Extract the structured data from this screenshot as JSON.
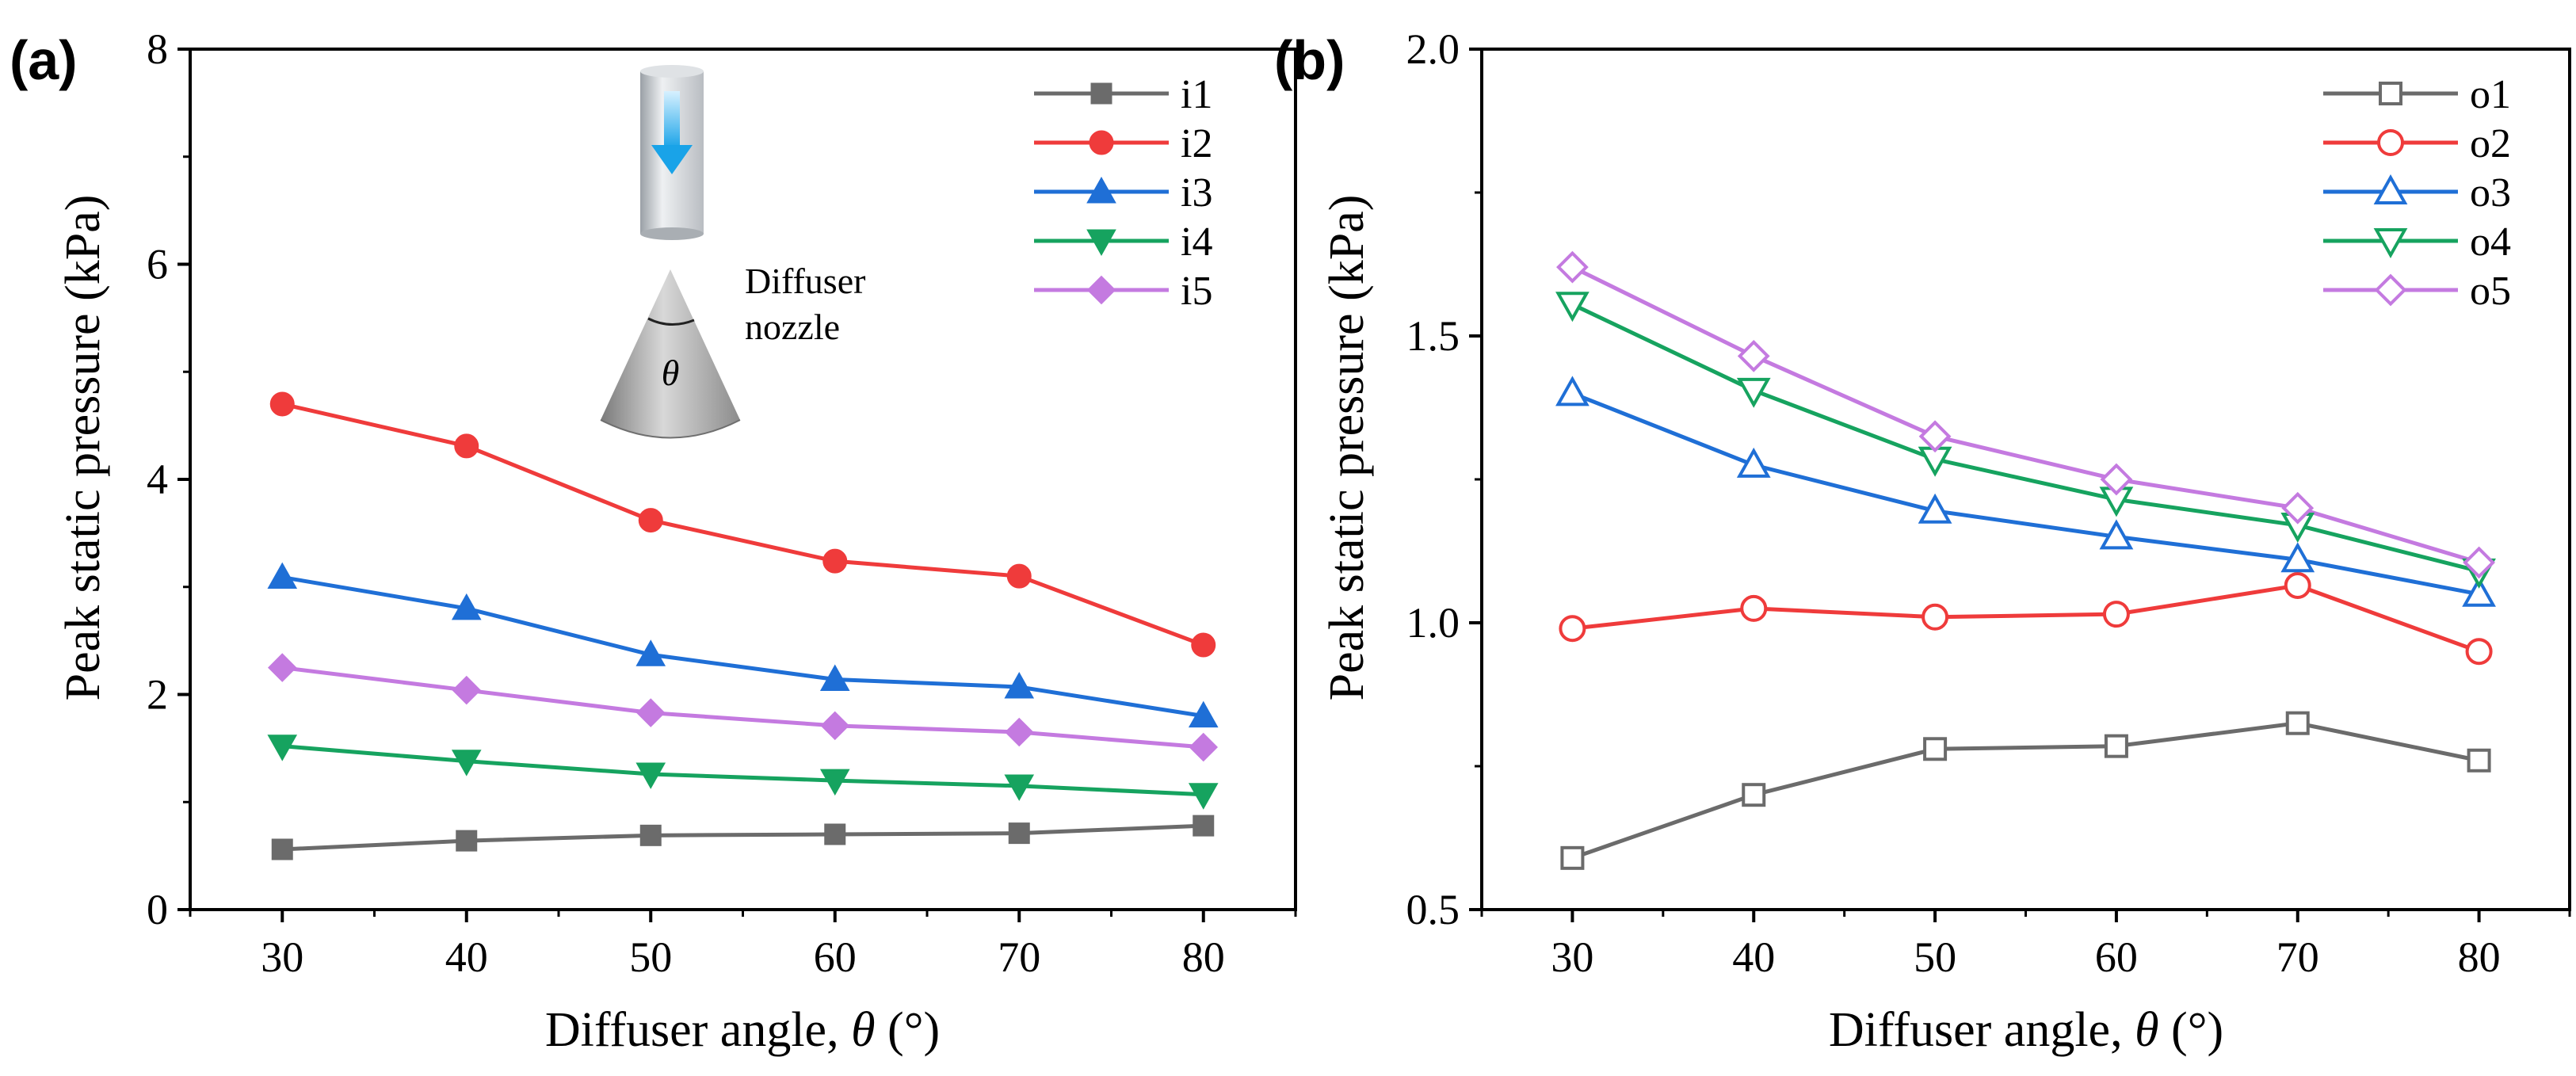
{
  "chart_data": [
    {
      "type": "line",
      "panel_label": "(a)",
      "xlabel": "Diffuser angle, θ (°)",
      "ylabel": "Peak static pressure (kPa)",
      "x": [
        30,
        40,
        50,
        60,
        70,
        80
      ],
      "xlim": [
        25,
        85
      ],
      "ylim": [
        0,
        8
      ],
      "xticks": [
        30,
        40,
        50,
        60,
        70,
        80
      ],
      "yticks": [
        0,
        2,
        4,
        6,
        8
      ],
      "legend_position": "top-right",
      "series": [
        {
          "name": "i1",
          "values": [
            0.56,
            0.64,
            0.69,
            0.7,
            0.71,
            0.78
          ],
          "color": "#6b6b6b",
          "marker": "square",
          "filled": true
        },
        {
          "name": "i2",
          "values": [
            4.7,
            4.31,
            3.62,
            3.24,
            3.1,
            2.46
          ],
          "color": "#ef3b3b",
          "marker": "circle",
          "filled": true
        },
        {
          "name": "i3",
          "values": [
            3.09,
            2.8,
            2.37,
            2.14,
            2.07,
            1.8
          ],
          "color": "#1f6fd6",
          "marker": "triangle-up",
          "filled": true
        },
        {
          "name": "i4",
          "values": [
            1.52,
            1.38,
            1.26,
            1.2,
            1.15,
            1.07
          ],
          "color": "#16a35f",
          "marker": "triangle-down",
          "filled": true
        },
        {
          "name": "i5",
          "values": [
            2.25,
            2.04,
            1.83,
            1.71,
            1.65,
            1.51
          ],
          "color": "#c47ae0",
          "marker": "diamond",
          "filled": true
        }
      ],
      "inset": {
        "label_line1": "Diffuser",
        "label_line2": "nozzle",
        "angle_symbol": "θ"
      }
    },
    {
      "type": "line",
      "panel_label": "(b)",
      "xlabel": "Diffuser angle, θ (°)",
      "ylabel": "Peak static pressure (kPa)",
      "x": [
        30,
        40,
        50,
        60,
        70,
        80
      ],
      "xlim": [
        25,
        85
      ],
      "ylim": [
        0.5,
        2.0
      ],
      "xticks": [
        30,
        40,
        50,
        60,
        70,
        80
      ],
      "yticks": [
        0.5,
        1.0,
        1.5,
        2.0
      ],
      "ytick_labels": [
        "0.5",
        "1.0",
        "1.5",
        "2.0"
      ],
      "legend_position": "top-right",
      "series": [
        {
          "name": "o1",
          "values": [
            0.59,
            0.7,
            0.78,
            0.785,
            0.825,
            0.76
          ],
          "color": "#6b6b6b",
          "marker": "square",
          "filled": false
        },
        {
          "name": "o2",
          "values": [
            0.99,
            1.025,
            1.01,
            1.015,
            1.065,
            0.95
          ],
          "color": "#ef3b3b",
          "marker": "circle",
          "filled": false
        },
        {
          "name": "o3",
          "values": [
            1.4,
            1.275,
            1.195,
            1.15,
            1.11,
            1.05
          ],
          "color": "#1f6fd6",
          "marker": "triangle-up",
          "filled": false
        },
        {
          "name": "o4",
          "values": [
            1.555,
            1.405,
            1.285,
            1.215,
            1.17,
            1.09
          ],
          "color": "#16a35f",
          "marker": "triangle-down",
          "filled": false
        },
        {
          "name": "o5",
          "values": [
            1.62,
            1.465,
            1.325,
            1.25,
            1.2,
            1.105
          ],
          "color": "#c47ae0",
          "marker": "diamond",
          "filled": false
        }
      ]
    }
  ]
}
